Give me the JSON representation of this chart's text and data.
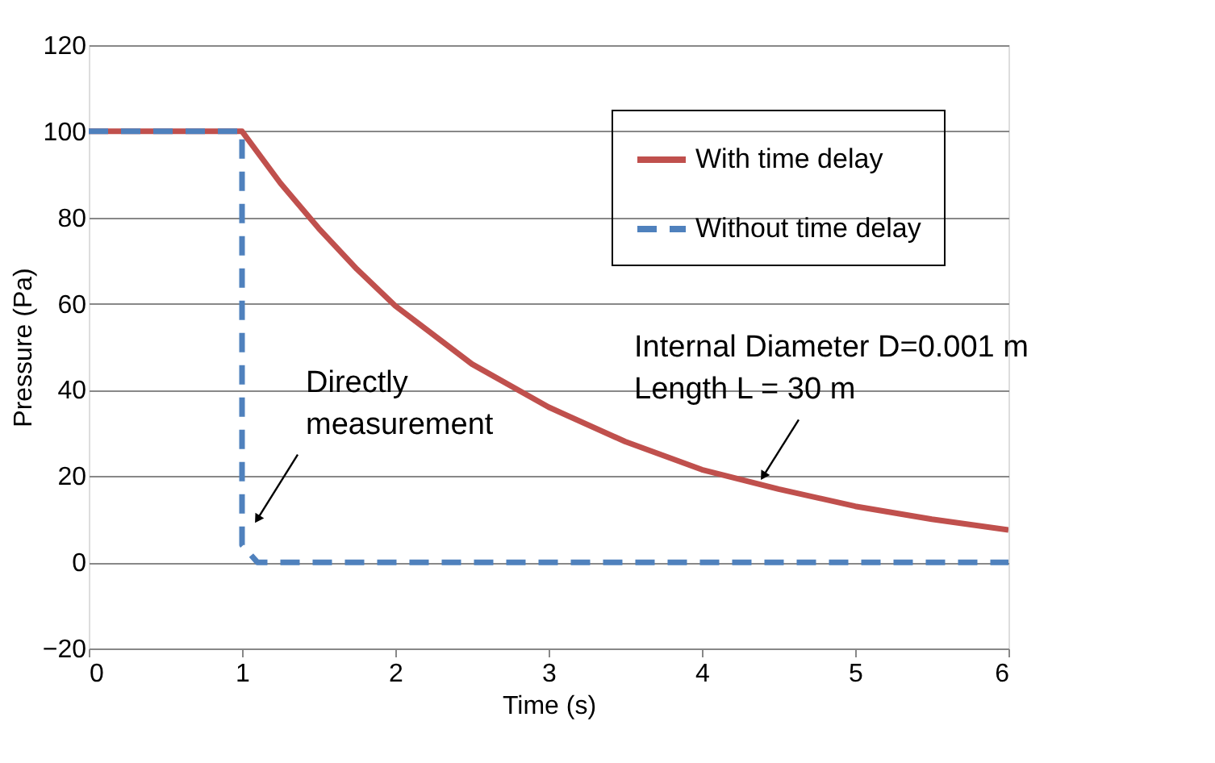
{
  "chart_data": {
    "type": "line",
    "xlabel": "Time (s)",
    "ylabel": "Pressure (Pa)",
    "xlim": [
      0,
      6
    ],
    "xticks": [
      0,
      1,
      2,
      3,
      4,
      5,
      6
    ],
    "ylim": [
      -20,
      120
    ],
    "yticks": [
      -20,
      0,
      20,
      40,
      60,
      80,
      100,
      120
    ],
    "grid": "y",
    "legend": "top right",
    "marker": "none",
    "series": [
      {
        "name": "With time delay",
        "color": "#c0504d",
        "line_style": "solid",
        "x": [
          0,
          1,
          1.25,
          1.5,
          1.75,
          2,
          2.5,
          3,
          3.5,
          4,
          4.5,
          5,
          5.5,
          6
        ],
        "values": [
          100,
          100,
          88,
          77.5,
          68,
          59.5,
          46,
          36,
          28,
          21.5,
          17,
          13,
          10,
          7.5
        ]
      },
      {
        "name": "Without time delay",
        "color": "#4f81bd",
        "line_style": "dashed",
        "x": [
          0,
          1,
          1,
          1.1,
          6
        ],
        "values": [
          100,
          100,
          4,
          0,
          0
        ]
      }
    ],
    "annotations": [
      {
        "text": "Directly\nmeasurement",
        "x": 1.1,
        "y": 10
      },
      {
        "text": "Internal Diameter D=0.001 m\nLength L = 30 m",
        "x": 4.4,
        "y": 20
      }
    ]
  }
}
